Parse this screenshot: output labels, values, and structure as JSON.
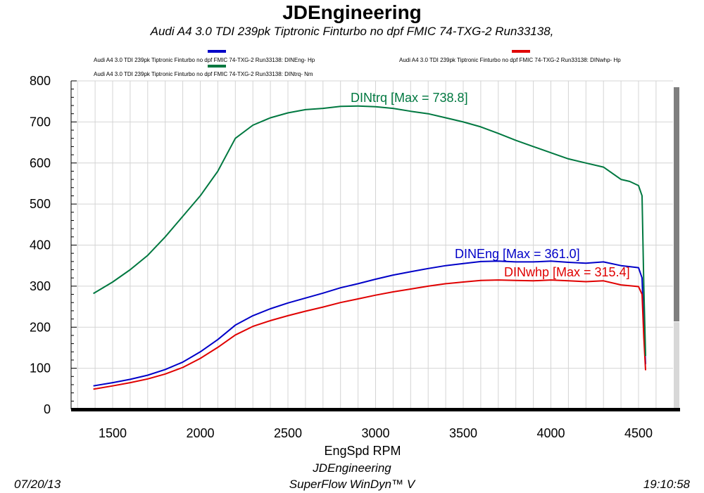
{
  "header": {
    "title": "JDEngineering",
    "subtitle": "Audi A4 3.0 TDI 239pk  Tiptronic Finturbo no dpf FMIC     74-TXG-2 Run33138,"
  },
  "footer": {
    "date": "07/20/13",
    "company": "JDEngineering",
    "software": "SuperFlow WinDyn™ V",
    "time": "19:10:58"
  },
  "colors": {
    "eng": "#0000c8",
    "whp": "#e00000",
    "trq": "#007840",
    "grid": "#d4d4d4",
    "axis": "#000000"
  },
  "chart_data": {
    "type": "line",
    "title": "JDEngineering",
    "xlabel": "EngSpd  RPM",
    "ylabel": "",
    "xlim": [
      1300,
      4750
    ],
    "ylim": [
      0,
      800
    ],
    "x_ticks": [
      1500,
      2000,
      2500,
      3000,
      3500,
      4000,
      4500
    ],
    "y_ticks": [
      0,
      100,
      200,
      300,
      400,
      500,
      600,
      700,
      800
    ],
    "grid": true,
    "legend_position": "top",
    "legend": [
      "Audi A4 3.0 TDI 239pk  Tiptronic Finturbo no dpf FMIC    74-TXG-2 Run33138: DINEng- Hp",
      "Audi A4 3.0 TDI 239pk  Tiptronic Finturbo no dpf FMIC    74-TXG-2 Run33138: DINwhp- Hp",
      "Audi A4 3.0 TDI 239pk  Tiptronic Finturbo no dpf FMIC    74-TXG-2 Run33138: DINtrq- Nm"
    ],
    "series": [
      {
        "name": "DINEng",
        "annotation": "DINEng [Max = 361.0]",
        "x": [
          1390,
          1500,
          1600,
          1700,
          1800,
          1900,
          2000,
          2100,
          2200,
          2300,
          2400,
          2500,
          2600,
          2700,
          2800,
          2900,
          3000,
          3100,
          3200,
          3300,
          3400,
          3500,
          3600,
          3700,
          3800,
          3900,
          4000,
          4100,
          4200,
          4300,
          4400,
          4500,
          4520,
          4530,
          4540
        ],
        "y": [
          57,
          65,
          73,
          83,
          97,
          115,
          140,
          170,
          205,
          228,
          245,
          259,
          271,
          283,
          296,
          306,
          317,
          327,
          335,
          343,
          350,
          355,
          360,
          361,
          359,
          359,
          361,
          358,
          356,
          359,
          350,
          345,
          320,
          200,
          110
        ]
      },
      {
        "name": "DINwhp",
        "annotation": "DINwhp [Max = 315.4]",
        "x": [
          1390,
          1500,
          1600,
          1700,
          1800,
          1900,
          2000,
          2100,
          2200,
          2300,
          2400,
          2500,
          2600,
          2700,
          2800,
          2900,
          3000,
          3100,
          3200,
          3300,
          3400,
          3500,
          3600,
          3700,
          3800,
          3900,
          4000,
          4100,
          4200,
          4300,
          4400,
          4500,
          4520,
          4530,
          4540
        ],
        "y": [
          49,
          57,
          65,
          74,
          86,
          102,
          124,
          151,
          181,
          202,
          216,
          228,
          239,
          249,
          260,
          269,
          278,
          286,
          293,
          300,
          306,
          310,
          314,
          315,
          314,
          313,
          315,
          313,
          311,
          313,
          303,
          299,
          280,
          175,
          95
        ]
      },
      {
        "name": "DINtrq",
        "annotation": "DINtrq [Max = 738.8]",
        "x": [
          1390,
          1500,
          1600,
          1700,
          1800,
          1900,
          2000,
          2100,
          2200,
          2300,
          2400,
          2500,
          2600,
          2700,
          2800,
          2900,
          3000,
          3100,
          3200,
          3300,
          3400,
          3500,
          3600,
          3700,
          3800,
          3900,
          4000,
          4100,
          4200,
          4300,
          4400,
          4450,
          4500,
          4520,
          4530,
          4540
        ],
        "y": [
          282,
          310,
          340,
          375,
          420,
          470,
          520,
          580,
          660,
          692,
          710,
          722,
          730,
          733,
          738,
          738.8,
          737,
          733,
          726,
          720,
          710,
          700,
          688,
          672,
          655,
          640,
          625,
          610,
          600,
          590,
          560,
          555,
          545,
          520,
          300,
          130
        ]
      }
    ]
  }
}
